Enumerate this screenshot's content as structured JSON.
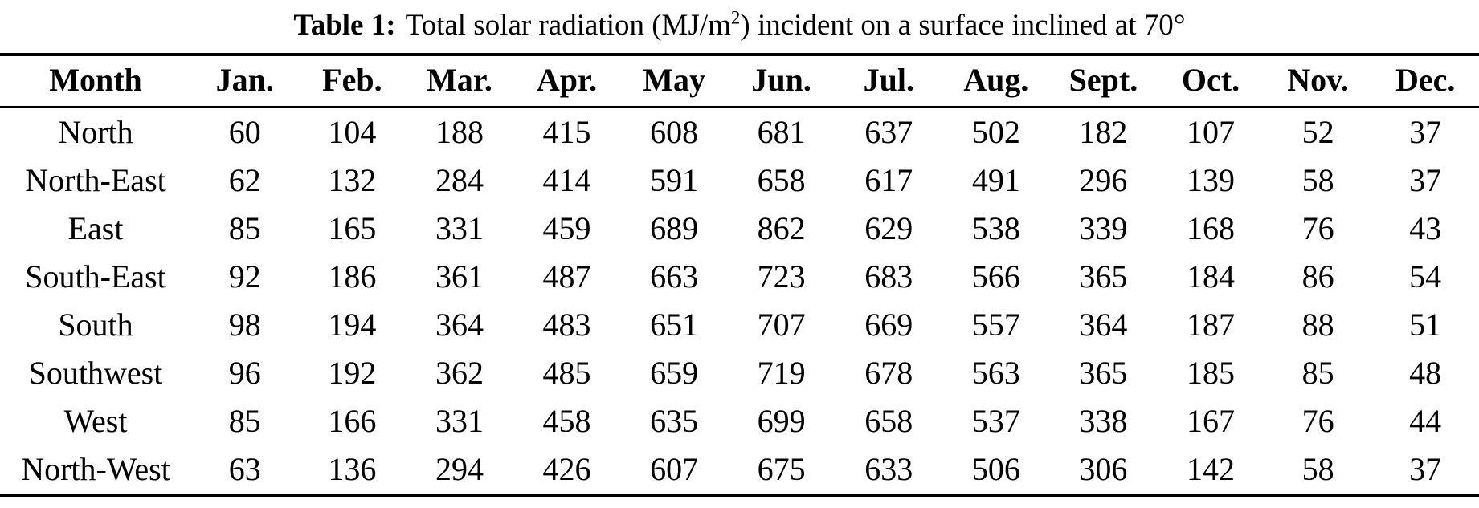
{
  "caption": {
    "label": "Table 1:",
    "text_before_sup": "Total solar radiation (MJ/m",
    "sup": "2",
    "text_after_sup": ") incident on a surface inclined at 70°"
  },
  "table": {
    "columns": [
      "Month",
      "Jan.",
      "Feb.",
      "Mar.",
      "Apr.",
      "May",
      "Jun.",
      "Jul.",
      "Aug.",
      "Sept.",
      "Oct.",
      "Nov.",
      "Dec."
    ],
    "rows": [
      {
        "label": "North",
        "values": [
          60,
          104,
          188,
          415,
          608,
          681,
          637,
          502,
          182,
          107,
          52,
          37
        ]
      },
      {
        "label": "North-East",
        "values": [
          62,
          132,
          284,
          414,
          591,
          658,
          617,
          491,
          296,
          139,
          58,
          37
        ]
      },
      {
        "label": "East",
        "values": [
          85,
          165,
          331,
          459,
          689,
          862,
          629,
          538,
          339,
          168,
          76,
          43
        ]
      },
      {
        "label": "South-East",
        "values": [
          92,
          186,
          361,
          487,
          663,
          723,
          683,
          566,
          365,
          184,
          86,
          54
        ]
      },
      {
        "label": "South",
        "values": [
          98,
          194,
          364,
          483,
          651,
          707,
          669,
          557,
          364,
          187,
          88,
          51
        ]
      },
      {
        "label": "Southwest",
        "values": [
          96,
          192,
          362,
          485,
          659,
          719,
          678,
          563,
          365,
          185,
          85,
          48
        ]
      },
      {
        "label": "West",
        "values": [
          85,
          166,
          331,
          458,
          635,
          699,
          658,
          537,
          338,
          167,
          76,
          44
        ]
      },
      {
        "label": "North-West",
        "values": [
          63,
          136,
          294,
          426,
          607,
          675,
          633,
          506,
          306,
          142,
          58,
          37
        ]
      }
    ]
  },
  "colors": {
    "text": "#000000",
    "background": "#ffffff",
    "rule": "#000000"
  }
}
